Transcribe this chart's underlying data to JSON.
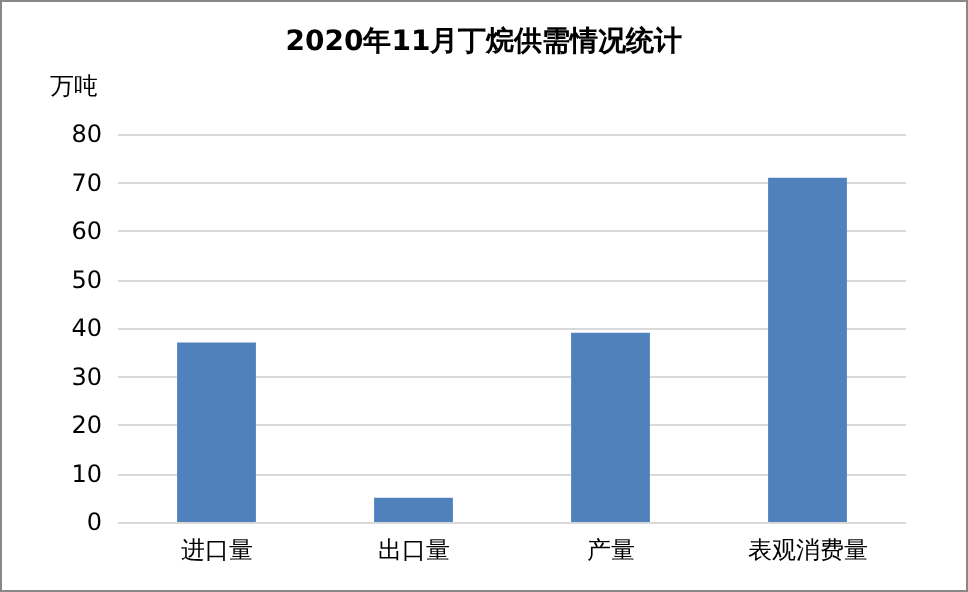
{
  "chart_data": {
    "type": "bar",
    "title": "2020年11月丁烷供需情况统计",
    "ylabel": "万吨",
    "categories": [
      "进口量",
      "出口量",
      "产量",
      "表观消费量"
    ],
    "values": [
      37,
      5,
      39,
      71
    ],
    "color": "#4f81bd",
    "ylim": [
      0,
      80
    ],
    "yticks": [
      0,
      10,
      20,
      30,
      40,
      50,
      60,
      70,
      80
    ],
    "grid": "y"
  }
}
